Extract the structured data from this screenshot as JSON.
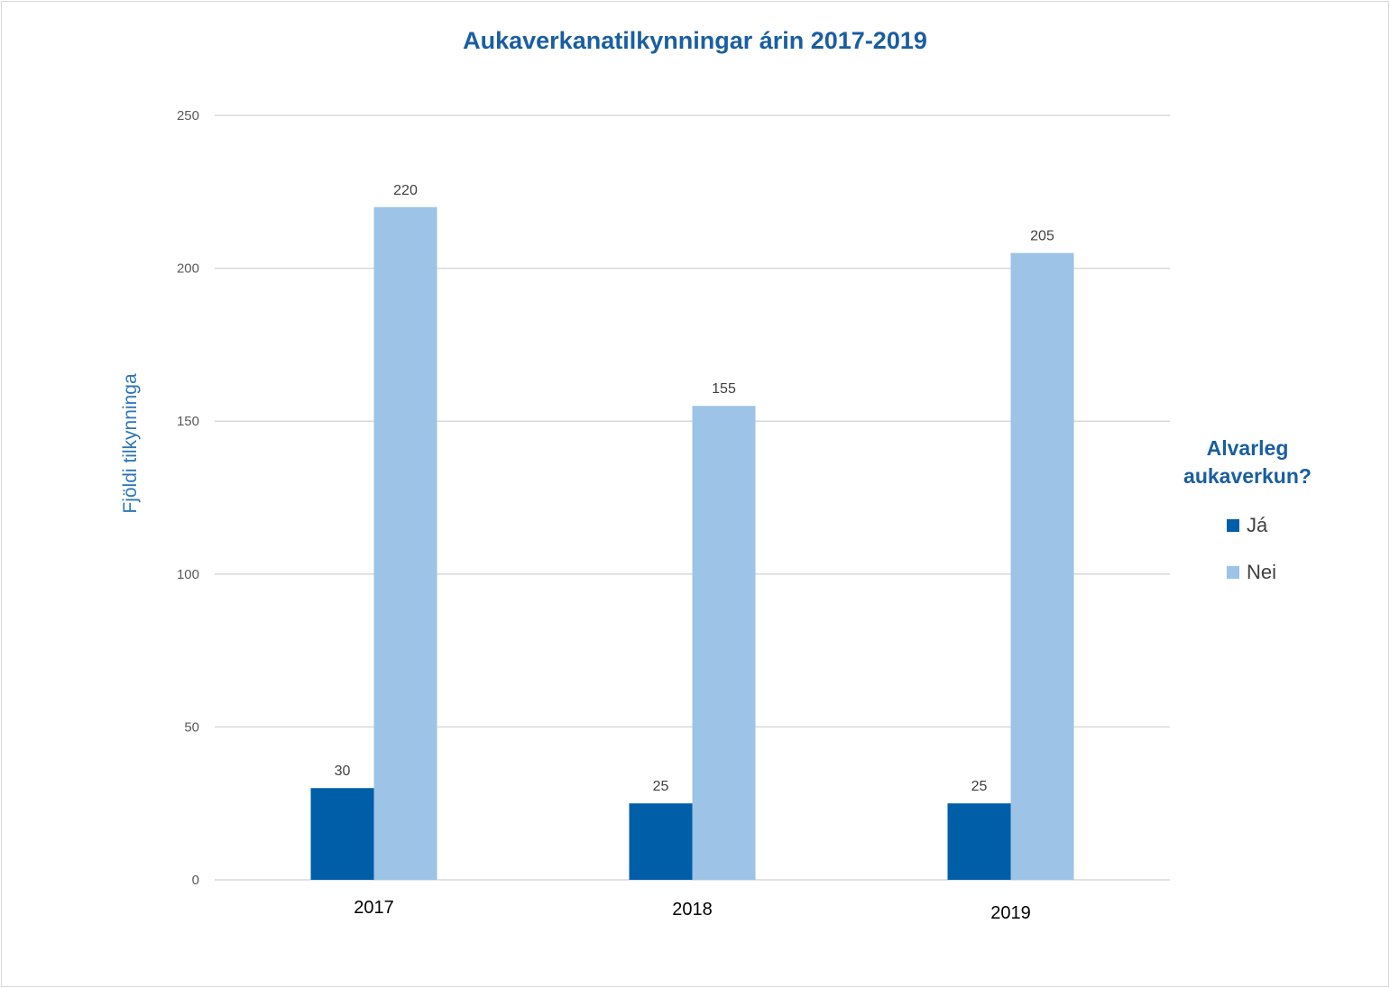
{
  "chart_data": {
    "type": "bar",
    "title": "Aukaverkanatilkynningar árin 2017-2019",
    "xlabel": "",
    "ylabel": "Fjöldi tilkynninga",
    "categories": [
      "2017",
      "2018",
      "2019"
    ],
    "series": [
      {
        "name": "Já",
        "values": [
          30,
          25,
          25
        ],
        "color": "#005ea8"
      },
      {
        "name": "Nei",
        "values": [
          220,
          155,
          205
        ],
        "color": "#9dc3e6"
      }
    ],
    "ylim": [
      0,
      250
    ],
    "yticks": [
      0,
      50,
      100,
      150,
      200,
      250
    ],
    "grid": true,
    "data_labels": true,
    "legend": {
      "title": "Alvarleg aukaverkun?",
      "placement": "right"
    }
  }
}
